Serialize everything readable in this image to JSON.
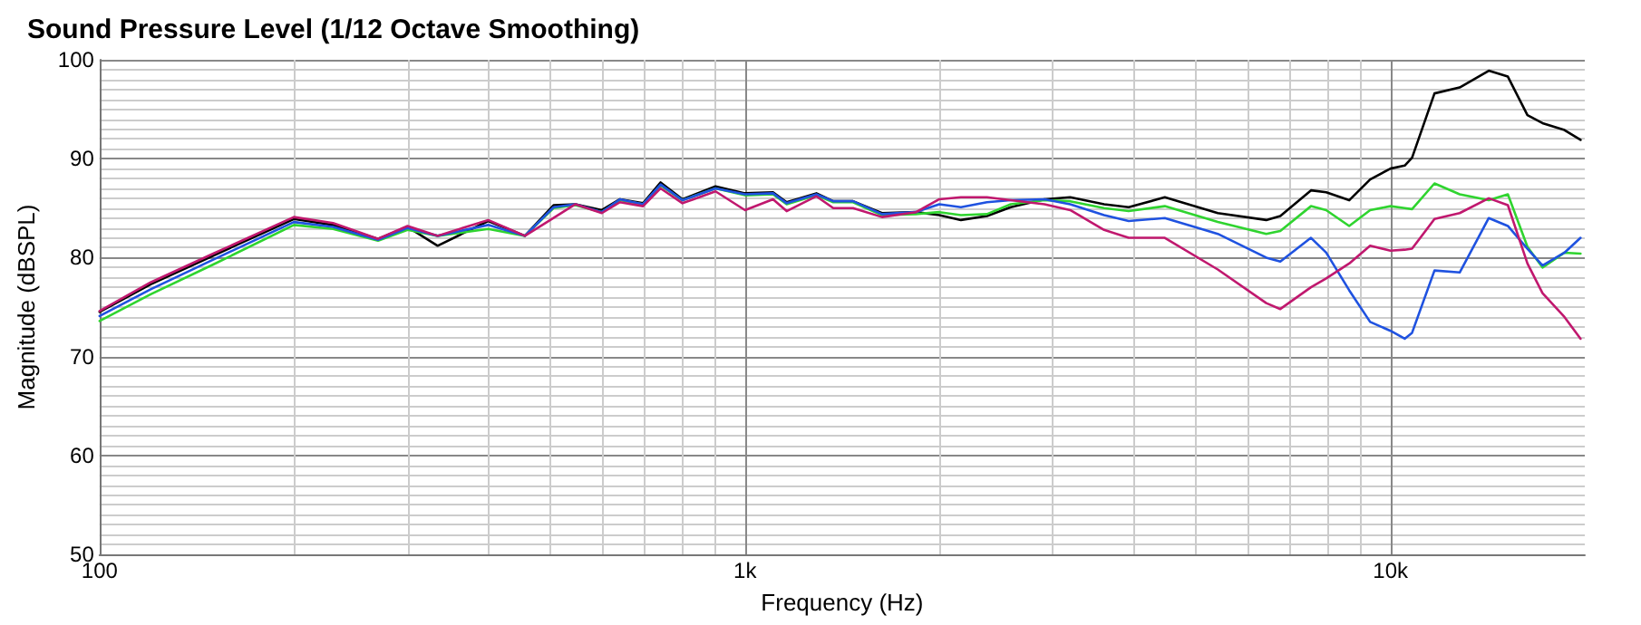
{
  "chart_data": {
    "type": "line",
    "title": "Sound Pressure Level (1/12 Octave Smoothing)",
    "xlabel": "Frequency (Hz)",
    "ylabel": "Magnitude (dBSPL)",
    "x": [
      100,
      120,
      150,
      200,
      230,
      270,
      300,
      334,
      400,
      456,
      505,
      546,
      600,
      640,
      695,
      740,
      800,
      900,
      1000,
      1105,
      1160,
      1290,
      1370,
      1470,
      1630,
      1840,
      2000,
      2160,
      2370,
      2580,
      2910,
      3190,
      3600,
      3930,
      4470,
      5400,
      6420,
      6750,
      7530,
      7950,
      8630,
      9300,
      10000,
      10520,
      10800,
      11700,
      12800,
      14200,
      15200,
      16300,
      17200,
      18600,
      19700
    ],
    "series": [
      {
        "color": "#000000",
        "values": [
          74.5,
          77.3,
          80.2,
          83.9,
          83.3,
          81.9,
          83.1,
          81.2,
          83.7,
          82.2,
          85.3,
          85.4,
          84.8,
          85.9,
          85.5,
          87.6,
          85.9,
          87.2,
          86.5,
          86.6,
          85.6,
          86.5,
          85.7,
          85.7,
          84.5,
          84.6,
          84.3,
          83.8,
          84.2,
          85.1,
          85.9,
          86.1,
          85.4,
          85.1,
          86.1,
          84.5,
          83.8,
          84.2,
          86.8,
          86.6,
          85.8,
          87.9,
          89.0,
          89.3,
          90.1,
          96.6,
          97.2,
          98.9,
          98.3,
          94.4,
          93.6,
          92.9,
          91.9
        ]
      },
      {
        "color": "#2fd42f",
        "values": [
          73.6,
          76.3,
          79.3,
          83.3,
          82.9,
          81.7,
          82.8,
          82.2,
          82.9,
          82.2,
          85.0,
          85.3,
          84.6,
          85.8,
          85.4,
          87.3,
          85.8,
          87.0,
          86.3,
          86.4,
          85.4,
          86.3,
          85.6,
          85.6,
          84.3,
          84.4,
          84.6,
          84.3,
          84.4,
          85.4,
          85.8,
          85.7,
          85.0,
          84.7,
          85.2,
          83.6,
          82.4,
          82.7,
          85.2,
          84.8,
          83.2,
          84.8,
          85.2,
          85.0,
          84.9,
          87.5,
          86.4,
          85.8,
          86.4,
          81.1,
          79.0,
          80.5,
          80.4
        ]
      },
      {
        "color": "#1f52e0",
        "values": [
          74.1,
          76.8,
          79.8,
          83.6,
          83.1,
          81.8,
          83.0,
          82.2,
          83.3,
          82.2,
          85.1,
          85.4,
          84.6,
          85.9,
          85.4,
          87.4,
          85.8,
          87.0,
          86.4,
          86.5,
          85.5,
          86.4,
          85.7,
          85.7,
          84.4,
          84.6,
          85.4,
          85.1,
          85.6,
          85.8,
          85.9,
          85.4,
          84.3,
          83.7,
          84.0,
          82.4,
          80.0,
          79.6,
          82.0,
          80.5,
          76.7,
          73.5,
          72.6,
          71.8,
          72.4,
          78.7,
          78.5,
          84.0,
          83.2,
          80.9,
          79.2,
          80.5,
          82.0
        ]
      },
      {
        "color": "#c0186e",
        "values": [
          74.6,
          77.5,
          80.4,
          84.1,
          83.5,
          81.9,
          83.2,
          82.2,
          83.8,
          82.2,
          84.0,
          85.4,
          84.5,
          85.6,
          85.2,
          87.0,
          85.5,
          86.7,
          84.8,
          85.9,
          84.7,
          86.2,
          85.0,
          85.0,
          84.1,
          84.6,
          85.9,
          86.1,
          86.1,
          85.8,
          85.4,
          84.8,
          82.8,
          82.0,
          82.0,
          78.8,
          75.4,
          74.8,
          77.0,
          77.9,
          79.4,
          81.2,
          80.7,
          80.8,
          80.9,
          83.9,
          84.5,
          86.0,
          85.3,
          79.4,
          76.4,
          74.0,
          71.8
        ]
      }
    ],
    "xlim": [
      100,
      20000
    ],
    "xticks": [
      {
        "value": 100,
        "label": "100"
      },
      {
        "value": 1000,
        "label": "1k"
      },
      {
        "value": 10000,
        "label": "10k"
      }
    ],
    "ylim": [
      50,
      100
    ],
    "yticks": [
      50,
      60,
      70,
      80,
      90,
      100
    ],
    "log": "x",
    "grid": true,
    "marker": "none",
    "line_style": "solid"
  }
}
